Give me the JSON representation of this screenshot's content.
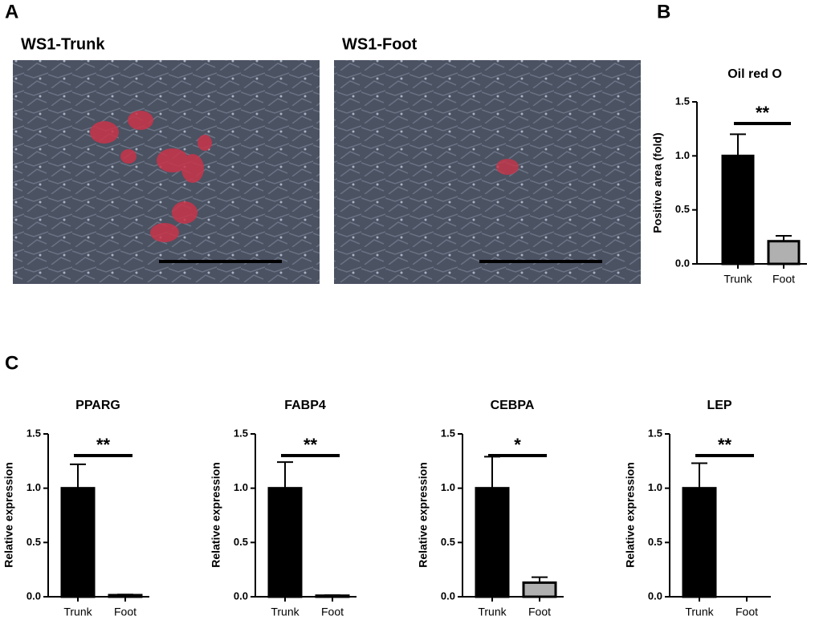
{
  "panel_labels": [
    "A",
    "B",
    "C"
  ],
  "images": [
    {
      "title": "WS1-Trunk"
    },
    {
      "title": "WS1-Foot"
    }
  ],
  "chart_data": [
    {
      "type": "bar",
      "title": "Oil red O",
      "ylabel": "Positive area (fold)",
      "categories": [
        "Trunk",
        "Foot"
      ],
      "values": [
        1.0,
        0.21
      ],
      "errors": [
        0.2,
        0.05
      ],
      "colors": [
        "#000000",
        "#b0b0b0"
      ],
      "significance": "**",
      "ylim": [
        0,
        1.5
      ],
      "yticks": [
        {
          "value": 0,
          "label": "0.0"
        },
        0.5,
        {
          "value": 1,
          "label": "1.0"
        },
        1.5
      ]
    },
    {
      "type": "bar",
      "title": "PPARG",
      "ylabel": "Relative expression",
      "categories": [
        "Trunk",
        "Foot"
      ],
      "values": [
        1.0,
        0.015
      ],
      "errors": [
        0.22,
        0.005
      ],
      "colors": [
        "#000000",
        "#b0b0b0"
      ],
      "significance": "**",
      "ylim": [
        0,
        1.5
      ],
      "yticks": [
        {
          "value": 0,
          "label": "0.0"
        },
        0.5,
        {
          "value": 1,
          "label": "1.0"
        },
        1.5
      ]
    },
    {
      "type": "bar",
      "title": "FABP4",
      "ylabel": "Relative expression",
      "categories": [
        "Trunk",
        "Foot"
      ],
      "values": [
        1.0,
        0.01
      ],
      "errors": [
        0.24,
        0.005
      ],
      "colors": [
        "#000000",
        "#b0b0b0"
      ],
      "significance": "**",
      "ylim": [
        0,
        1.5
      ],
      "yticks": [
        {
          "value": 0,
          "label": "0.0"
        },
        0.5,
        {
          "value": 1,
          "label": "1.0"
        },
        1.5
      ]
    },
    {
      "type": "bar",
      "title": "CEBPA",
      "ylabel": "Relative expression",
      "categories": [
        "Trunk",
        "Foot"
      ],
      "values": [
        1.0,
        0.13
      ],
      "errors": [
        0.29,
        0.05
      ],
      "colors": [
        "#000000",
        "#b0b0b0"
      ],
      "significance": "*",
      "ylim": [
        0,
        1.5
      ],
      "yticks": [
        {
          "value": 0,
          "label": "0.0"
        },
        0.5,
        {
          "value": 1,
          "label": "1.0"
        },
        1.5
      ]
    },
    {
      "type": "bar",
      "title": "LEP",
      "ylabel": "Relative expression",
      "categories": [
        "Trunk",
        "Foot"
      ],
      "values": [
        1.0,
        0.0
      ],
      "errors": [
        0.23,
        0.0
      ],
      "colors": [
        "#000000",
        "#b0b0b0"
      ],
      "significance": "**",
      "ylim": [
        0,
        1.5
      ],
      "yticks": [
        {
          "value": 0,
          "label": "0.0"
        },
        0.5,
        {
          "value": 1,
          "label": "1.0"
        },
        1.5
      ]
    }
  ]
}
